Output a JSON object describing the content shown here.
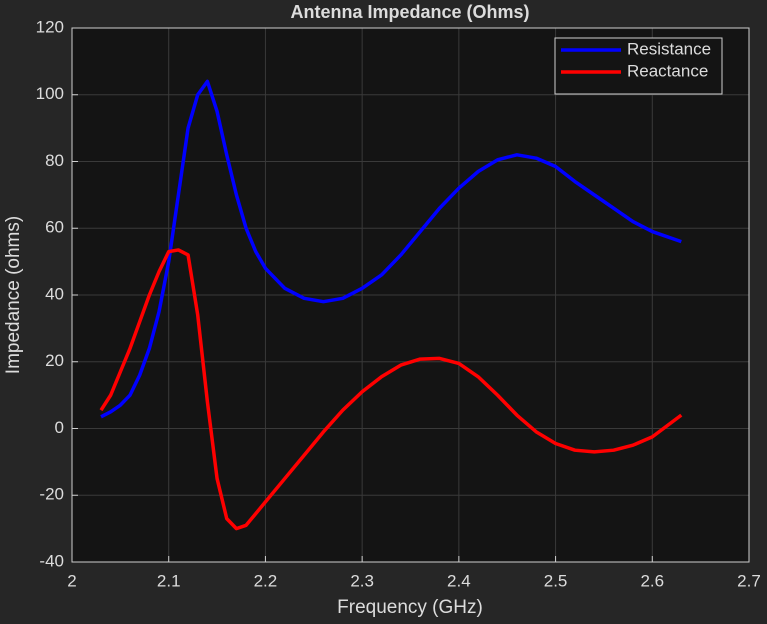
{
  "chart_data": {
    "type": "line",
    "title": "Antenna Impedance (Ohms)",
    "xlabel": "Frequency (GHz)",
    "ylabel": "Impedance (ohms)",
    "x": [
      2.03,
      2.04,
      2.05,
      2.06,
      2.07,
      2.08,
      2.09,
      2.1,
      2.11,
      2.12,
      2.13,
      2.14,
      2.15,
      2.16,
      2.17,
      2.18,
      2.19,
      2.2,
      2.22,
      2.24,
      2.26,
      2.28,
      2.3,
      2.32,
      2.34,
      2.36,
      2.38,
      2.4,
      2.42,
      2.44,
      2.46,
      2.48,
      2.5,
      2.52,
      2.54,
      2.56,
      2.58,
      2.6,
      2.63
    ],
    "series": [
      {
        "name": "Resistance",
        "color": "#0000ff",
        "values": [
          3.5,
          5,
          7,
          10,
          16,
          24,
          35,
          50,
          70,
          90,
          100,
          104,
          95,
          82,
          70,
          60,
          53,
          48,
          42,
          39,
          38,
          39,
          42,
          46,
          52,
          59,
          66,
          72,
          77,
          80.5,
          82,
          81,
          78.5,
          74,
          70,
          66,
          62,
          59,
          56
        ]
      },
      {
        "name": "Reactance",
        "color": "#ff0000",
        "values": [
          5.5,
          10,
          17,
          24,
          32,
          40,
          47,
          53,
          53.5,
          52,
          34,
          8,
          -15,
          -27,
          -30,
          -29,
          -25.5,
          -22,
          -15,
          -8,
          -1,
          5.5,
          11,
          15.5,
          19,
          20.8,
          21,
          19.5,
          15.5,
          10,
          4,
          -1,
          -4.5,
          -6.5,
          -7,
          -6.5,
          -5,
          -2.5,
          4
        ]
      }
    ],
    "xlim": [
      2,
      2.7
    ],
    "xticks": [
      2,
      2.1,
      2.2,
      2.3,
      2.4,
      2.5,
      2.6,
      2.7
    ],
    "ylim": [
      -40,
      120
    ],
    "yticks": [
      -40,
      -20,
      0,
      20,
      40,
      60,
      80,
      100,
      120
    ],
    "grid": true,
    "legend": "top-right"
  }
}
